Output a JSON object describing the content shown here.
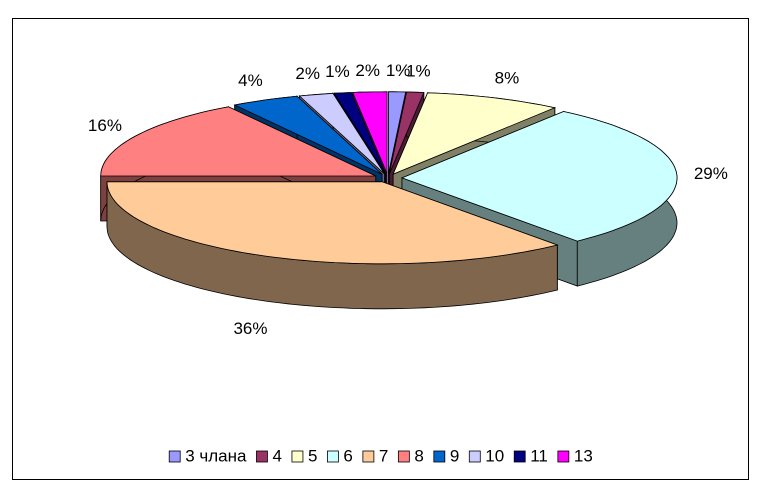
{
  "chart_data": {
    "type": "pie3d",
    "categories": [
      "3 члана",
      "4",
      "5",
      "6",
      "7",
      "8",
      "9",
      "10",
      "11",
      "13"
    ],
    "values": [
      1,
      1,
      8,
      29,
      36,
      16,
      4,
      2,
      1,
      2
    ],
    "value_labels": [
      "1%",
      "1%",
      "8%",
      "29%",
      "36%",
      "16%",
      "4%",
      "2%",
      "1%",
      "2%"
    ],
    "colors": [
      "#9999ff",
      "#993366",
      "#ffffcc",
      "#ccffff",
      "#ffcc99",
      "#ff8080",
      "#0066cc",
      "#ccccff",
      "#000080",
      "#ff00ff"
    ],
    "legend": "bottom"
  }
}
